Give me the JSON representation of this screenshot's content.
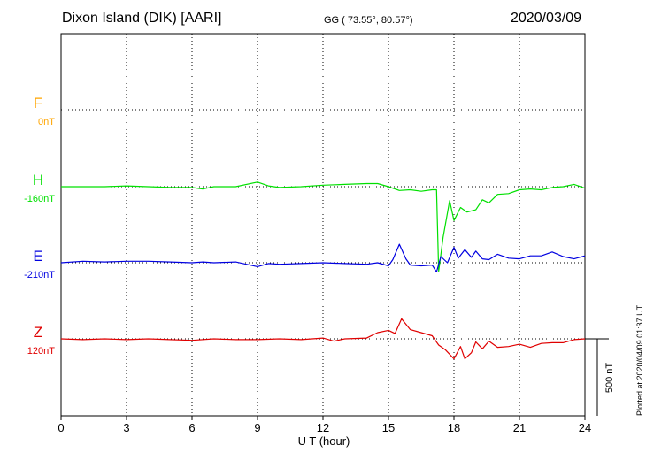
{
  "header": {
    "station": "Dixon Island (DIK)  [AARI]",
    "coords": "GG ( 73.55°,  80.57°)",
    "date": "2020/03/09"
  },
  "credit": "Plotted at 2020/04/09 01:37 UT",
  "scale_bar": {
    "label": "500 nT",
    "value_nT": 500
  },
  "chart_data": {
    "type": "line",
    "title": "",
    "xlabel": "U T (hour)",
    "ylabel": "",
    "xlim": [
      0,
      24
    ],
    "xticks": [
      0,
      3,
      6,
      9,
      12,
      15,
      18,
      21,
      24
    ],
    "grid": true,
    "series": [
      {
        "name": "F",
        "baseline_label": "0nT",
        "baseline_nT": 0,
        "color": "#ffa500",
        "x": [],
        "y": []
      },
      {
        "name": "H",
        "baseline_label": "-160nT",
        "baseline_nT": -160,
        "color": "#00e000",
        "x": [
          0,
          1,
          2,
          3,
          4,
          5,
          6,
          6.5,
          7,
          8,
          9,
          9.5,
          10,
          11,
          12,
          13,
          14,
          14.5,
          15,
          15.5,
          16,
          16.5,
          17,
          17.2,
          17.3,
          17.5,
          17.8,
          18,
          18.3,
          18.6,
          19,
          19.3,
          19.6,
          20,
          20.5,
          21,
          21.5,
          22,
          22.5,
          23,
          23.5,
          24
        ],
        "y": [
          -160,
          -160,
          -160,
          -155,
          -160,
          -165,
          -165,
          -175,
          -160,
          -160,
          -130,
          -155,
          -165,
          -160,
          -150,
          -145,
          -140,
          -140,
          -160,
          -185,
          -180,
          -190,
          -180,
          -180,
          -710,
          -490,
          -250,
          -380,
          -295,
          -325,
          -310,
          -245,
          -265,
          -210,
          -205,
          -180,
          -175,
          -180,
          -165,
          -160,
          -145,
          -170
        ]
      },
      {
        "name": "E",
        "baseline_label": "-210nT",
        "baseline_nT": -210,
        "color": "#0000e0",
        "x": [
          0,
          1,
          2,
          3,
          4,
          5,
          6,
          6.5,
          7,
          8,
          9,
          9.5,
          10,
          11,
          12,
          13,
          14,
          14.5,
          15,
          15.2,
          15.5,
          15.8,
          16,
          16.5,
          17,
          17.2,
          17.4,
          17.7,
          18,
          18.2,
          18.5,
          18.8,
          19,
          19.3,
          19.6,
          20,
          20.5,
          21,
          21.5,
          22,
          22.5,
          23,
          23.5,
          24
        ],
        "y": [
          -210,
          -200,
          -205,
          -200,
          -200,
          -205,
          -210,
          -205,
          -210,
          -205,
          -235,
          -215,
          -220,
          -215,
          -210,
          -215,
          -220,
          -210,
          -230,
          -190,
          -90,
          -185,
          -225,
          -230,
          -225,
          -270,
          -170,
          -210,
          -110,
          -180,
          -125,
          -175,
          -135,
          -185,
          -190,
          -155,
          -180,
          -185,
          -165,
          -165,
          -140,
          -170,
          -185,
          -165
        ]
      },
      {
        "name": "Z",
        "baseline_label": "120nT",
        "baseline_nT": 120,
        "color": "#e00000",
        "x": [
          0,
          1,
          2,
          3,
          4,
          5,
          6,
          7,
          8,
          9,
          10,
          11,
          12,
          12.5,
          13,
          14,
          14.5,
          15,
          15.3,
          15.6,
          16,
          16.5,
          17,
          17.3,
          17.6,
          18,
          18.3,
          18.5,
          18.8,
          19,
          19.3,
          19.6,
          20,
          20.5,
          21,
          21.5,
          22,
          22.5,
          23,
          23.5,
          24
        ],
        "y": [
          120,
          115,
          120,
          115,
          120,
          115,
          110,
          120,
          115,
          115,
          120,
          115,
          125,
          105,
          120,
          125,
          160,
          175,
          155,
          250,
          180,
          160,
          140,
          80,
          50,
          -10,
          70,
          -10,
          30,
          100,
          55,
          105,
          65,
          70,
          85,
          65,
          90,
          95,
          95,
          115,
          120
        ]
      }
    ]
  }
}
